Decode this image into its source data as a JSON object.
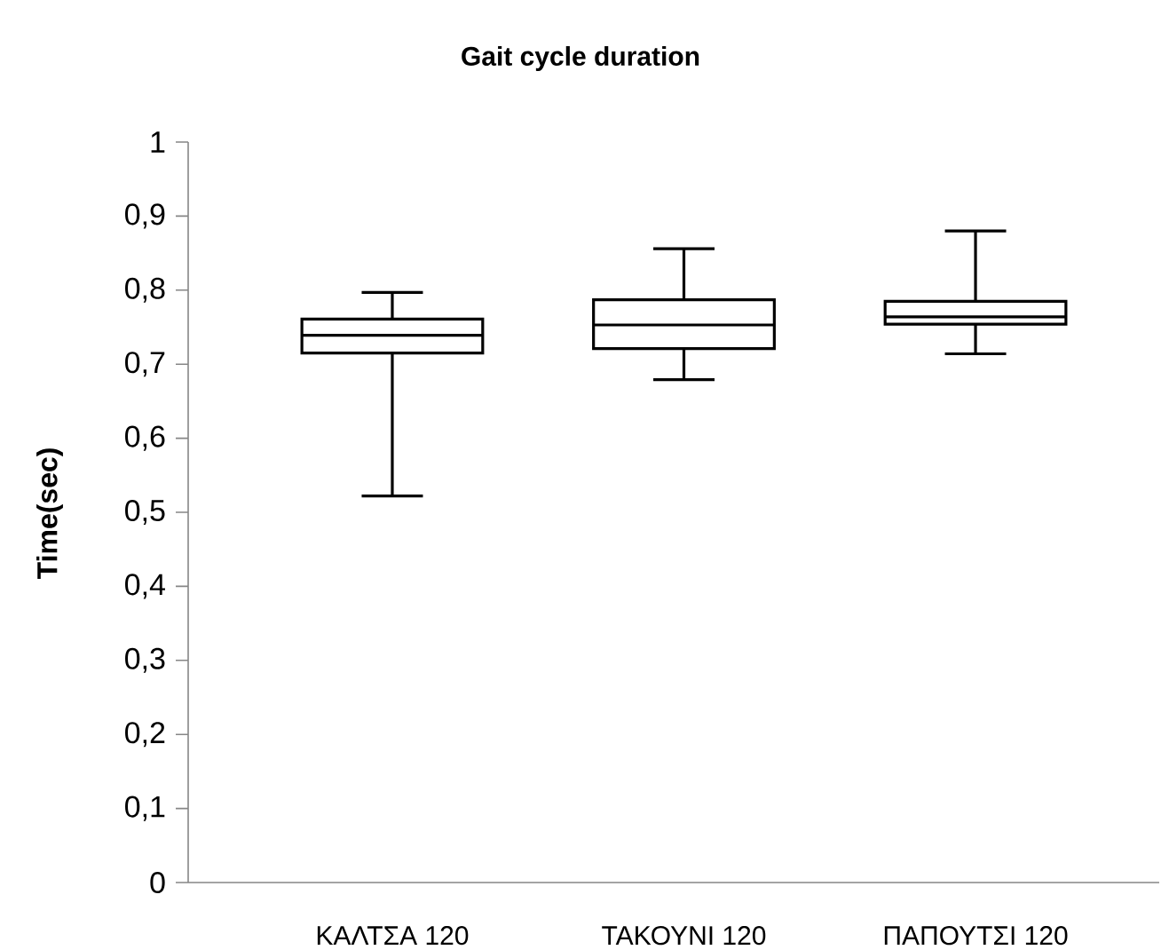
{
  "chart_data": {
    "type": "box",
    "title": "Gait cycle duration",
    "ylabel": "Time(sec)",
    "categories": [
      "ΚΑΛΤΣΑ 120",
      "ΤΑΚΟΥΝΙ 120",
      "ΠΑΠΟΥΤΣΙ 120"
    ],
    "boxes": [
      {
        "low": 0.522,
        "q1": 0.715,
        "median": 0.739,
        "q3": 0.761,
        "high": 0.797
      },
      {
        "low": 0.679,
        "q1": 0.721,
        "median": 0.753,
        "q3": 0.787,
        "high": 0.856
      },
      {
        "low": 0.714,
        "q1": 0.754,
        "median": 0.764,
        "q3": 0.785,
        "high": 0.88
      }
    ],
    "color": "#000000",
    "ylim": [
      0,
      1
    ],
    "yticks": [
      0,
      {
        "value": 0.1,
        "label": "0,1"
      },
      {
        "value": 0.2,
        "label": "0,2"
      },
      {
        "value": 0.3,
        "label": "0,3"
      },
      {
        "value": 0.4,
        "label": "0,4"
      },
      {
        "value": 0.5,
        "label": "0,5"
      },
      {
        "value": 0.6,
        "label": "0,6"
      },
      {
        "value": 0.7,
        "label": "0,7"
      },
      {
        "value": 0.8,
        "label": "0,8"
      },
      {
        "value": 0.9,
        "label": "0,9"
      },
      1
    ]
  }
}
